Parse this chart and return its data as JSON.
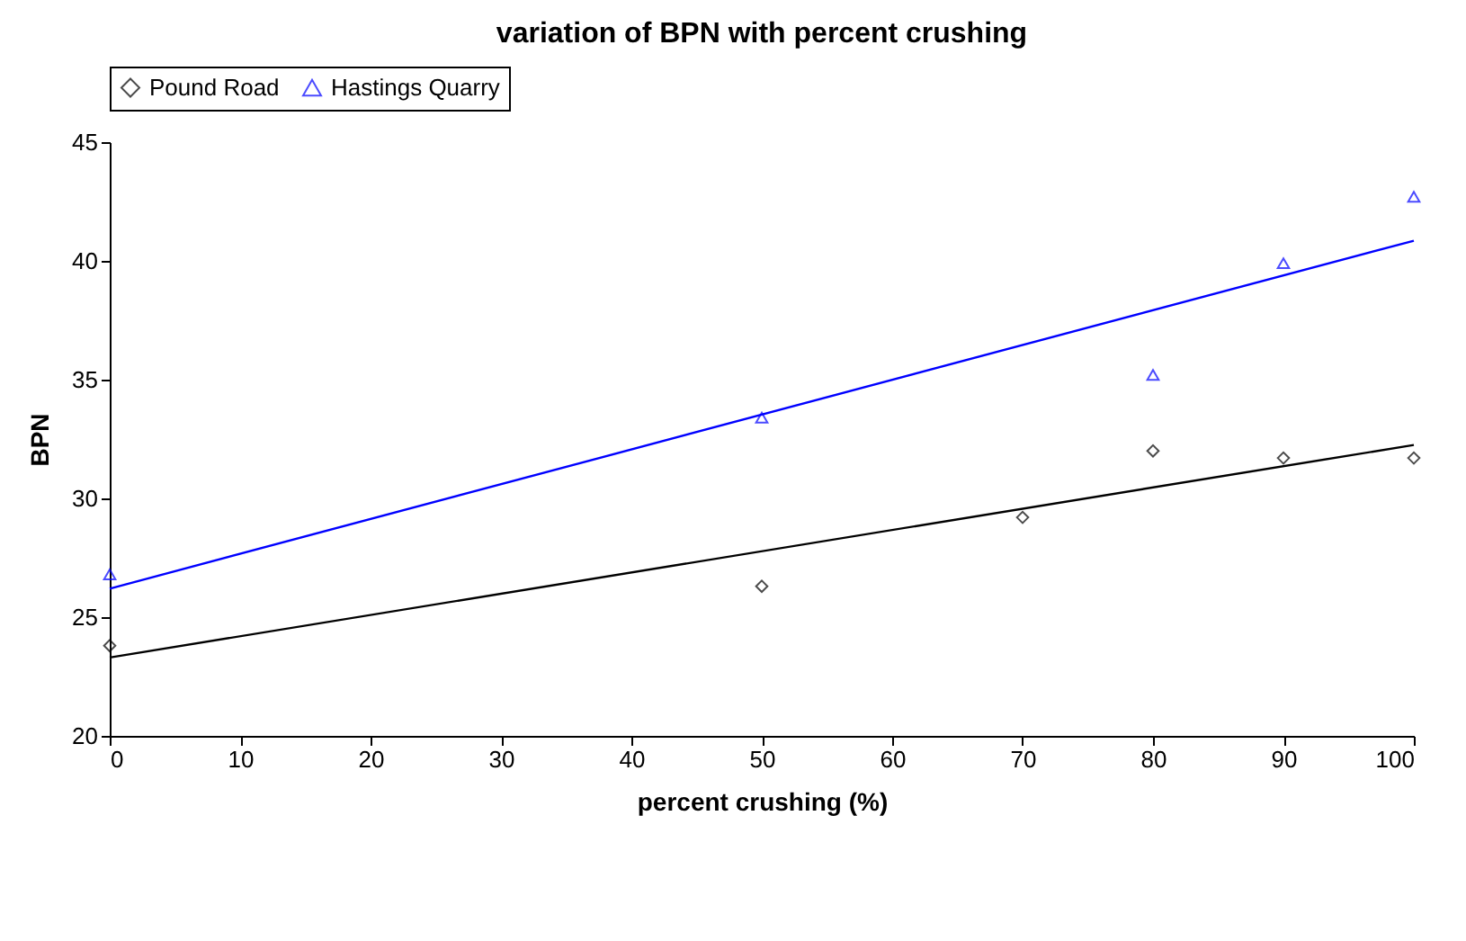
{
  "chart_data": {
    "type": "scatter",
    "title": "variation of BPN with percent crushing",
    "xlabel": "percent crushing (%)",
    "ylabel": "BPN",
    "xlim": [
      0,
      100
    ],
    "xticks": [
      0,
      10,
      20,
      30,
      40,
      50,
      60,
      70,
      80,
      90,
      100
    ],
    "ylim": [
      20,
      45
    ],
    "yticks": [
      20,
      25,
      30,
      35,
      40,
      45
    ],
    "grid": false,
    "legend": "top",
    "series": [
      {
        "name": "Pound Road",
        "color": "#000000",
        "marker": "diamond",
        "x": [
          0,
          50,
          70,
          80,
          90,
          100
        ],
        "values": [
          23.8,
          26.3,
          29.2,
          32.0,
          31.7,
          31.7
        ]
      },
      {
        "name": "Hastings Quarry",
        "color": "#0000ff",
        "marker": "triangle",
        "x": [
          0,
          50,
          80,
          90,
          100
        ],
        "values": [
          26.8,
          33.4,
          35.2,
          39.9,
          42.7
        ]
      },
      {
        "type": "line",
        "color": "#000000",
        "x": [
          0,
          100
        ],
        "values": [
          23.3,
          32.25
        ]
      },
      {
        "type": "line",
        "color": "#0000ff",
        "x": [
          0,
          100
        ],
        "values": [
          26.2,
          40.85
        ]
      }
    ]
  }
}
